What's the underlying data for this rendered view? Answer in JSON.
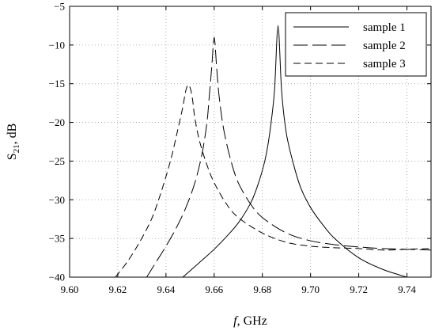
{
  "chart_data": {
    "type": "line",
    "xlabel": {
      "italic": "f",
      "rest": ", GHz"
    },
    "ylabel": {
      "base": "S",
      "sub": "21",
      "rest": ", dB"
    },
    "xlim": [
      9.6,
      9.75
    ],
    "ylim": [
      -40,
      -5
    ],
    "xticks": [
      9.6,
      9.62,
      9.64,
      9.66,
      9.68,
      9.7,
      9.72,
      9.74
    ],
    "xtick_labels": [
      "9.60",
      "9.62",
      "9.64",
      "9.66",
      "9.68",
      "9.70",
      "9.72",
      "9.74"
    ],
    "yticks": [
      -40,
      -35,
      -30,
      -25,
      -20,
      -15,
      -10,
      -5
    ],
    "ytick_labels": [
      "−40",
      "−35",
      "−30",
      "−25",
      "−20",
      "−15",
      "−10",
      "−5"
    ],
    "grid": true,
    "legend_position": "top-right",
    "series": [
      {
        "name": "sample 1",
        "dash": "solid",
        "x": [
          9.647,
          9.655,
          9.66,
          9.665,
          9.67,
          9.675,
          9.678,
          9.681,
          9.683,
          9.685,
          9.6865,
          9.688,
          9.69,
          9.693,
          9.696,
          9.7,
          9.705,
          9.71,
          9.72,
          9.73,
          9.74
        ],
        "y": [
          -40.0,
          -37.8,
          -36.4,
          -34.8,
          -33.0,
          -30.5,
          -28.2,
          -25.0,
          -21.5,
          -16.0,
          -7.5,
          -16.0,
          -21.5,
          -25.5,
          -28.5,
          -31.0,
          -33.2,
          -35.0,
          -37.5,
          -39.0,
          -40.0
        ]
      },
      {
        "name": "sample 2",
        "dash": "long",
        "x": [
          9.632,
          9.636,
          9.64,
          9.644,
          9.648,
          9.652,
          9.655,
          9.657,
          9.658,
          9.659,
          9.66,
          9.661,
          9.662,
          9.664,
          9.667,
          9.67,
          9.675,
          9.68,
          9.69,
          9.7,
          9.71,
          9.72,
          9.73,
          9.74,
          9.75
        ],
        "y": [
          -40.0,
          -38.0,
          -36.0,
          -33.8,
          -31.2,
          -27.8,
          -24.0,
          -20.0,
          -16.5,
          -12.8,
          -9.0,
          -12.8,
          -16.5,
          -21.0,
          -25.0,
          -27.8,
          -30.5,
          -32.3,
          -34.3,
          -35.3,
          -35.8,
          -36.1,
          -36.3,
          -36.4,
          -36.5
        ]
      },
      {
        "name": "sample 3",
        "dash": "short",
        "x": [
          9.619,
          9.624,
          9.629,
          9.634,
          9.638,
          9.642,
          9.645,
          9.647,
          9.648,
          9.649,
          9.65,
          9.651,
          9.652,
          9.654,
          9.657,
          9.66,
          9.665,
          9.67,
          9.68,
          9.69,
          9.7,
          9.71,
          9.72,
          9.73,
          9.74,
          9.75
        ],
        "y": [
          -40.0,
          -38.0,
          -35.5,
          -32.5,
          -29.0,
          -24.8,
          -20.8,
          -18.0,
          -16.2,
          -15.2,
          -15.5,
          -17.0,
          -19.5,
          -22.5,
          -25.5,
          -27.8,
          -30.5,
          -32.3,
          -34.3,
          -35.5,
          -36.0,
          -36.2,
          -36.3,
          -36.5,
          -36.4,
          -36.3
        ]
      }
    ]
  }
}
